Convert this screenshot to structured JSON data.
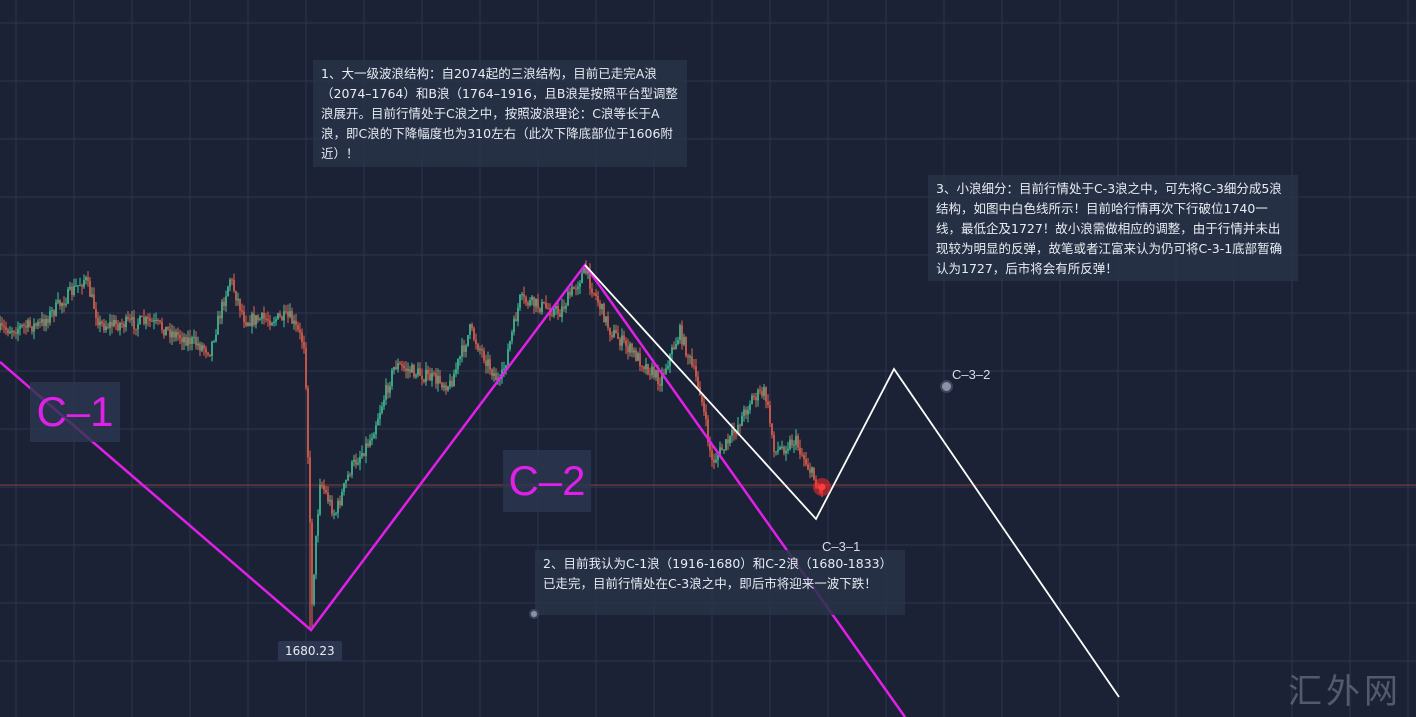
{
  "notes": {
    "note1": "1、大一级波浪结构：自2074起的三浪结构，目前已走完A浪（2074–1764）和B浪（1764–1916，且B浪是按照平台型调整浪展开。目前行情处于C浪之中，按照波浪理论：C浪等长于A浪，即C浪的下降幅度也为310左右（此次下降底部位于1606附近）！",
    "note2": "2、目前我认为C-1浪（1916-1680）和C-2浪（1680-1833）已走完，目前行情处在C-3浪之中，即后市将迎来一波下跌！",
    "note3": "3、小浪细分：目前行情处于C-3浪之中，可先将C-3细分成5浪结构，如图中白色线所示！目前哈行情再次下行破位1740一线，最低企及1727！故小浪需做相应的调整，由于行情并未出现较为明显的反弹，故笔或者江富来认为仍可将C-3-1底部暂确认为1727，后市将会有所反弹！"
  },
  "wave_labels": {
    "c1": "C–1",
    "c2": "C–2",
    "c31": "C–3–1",
    "c32": "C–3–2"
  },
  "price_tag": "1680.23",
  "watermark": "汇外网",
  "colors": {
    "background": "#1c2235",
    "grid": "#2c3550",
    "up_candle": "#3fc79a",
    "down_candle": "#e8644f",
    "wave_major": "#e020e8",
    "wave_minor": "#ffffff",
    "price_line": "#a8443f"
  }
}
